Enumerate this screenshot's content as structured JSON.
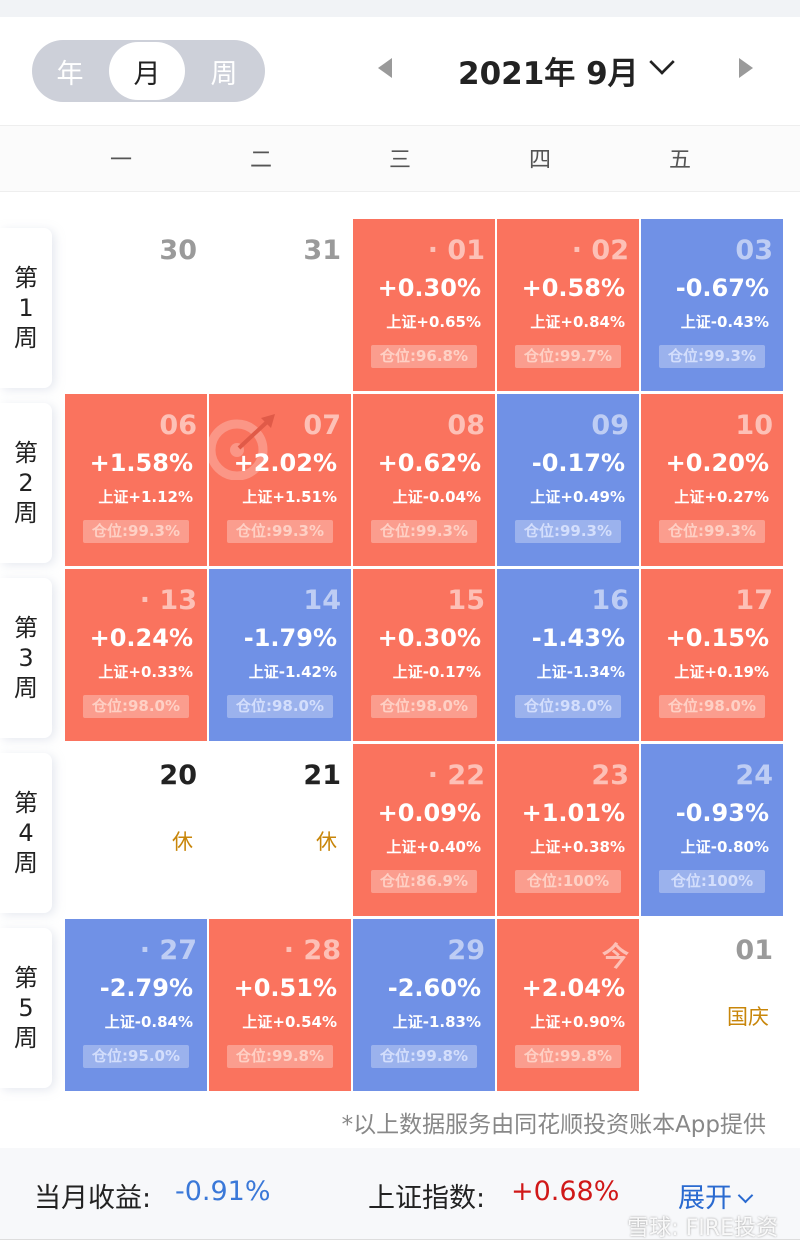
{
  "header": {
    "tabs": [
      "年",
      "月",
      "周"
    ],
    "active_tab": "月",
    "title": "2021年 9月"
  },
  "weekdays": [
    "一",
    "二",
    "三",
    "四",
    "五"
  ],
  "weeks": [
    "第1周",
    "第2周",
    "第3周",
    "第4周",
    "第5周"
  ],
  "colors": {
    "up": "#fa735e",
    "down": "#7091e6",
    "holiday": "#c8860a",
    "month_return": "#3a78d8",
    "index_return": "#d01818",
    "expand": "#2a6ad0"
  },
  "cells": [
    [
      {
        "day": "30",
        "type": "empty"
      },
      {
        "day": "31",
        "type": "empty"
      },
      {
        "day": "· 01",
        "type": "up",
        "pct": "+0.30%",
        "idx": "上证+0.65%",
        "pos": "仓位:96.8%"
      },
      {
        "day": "· 02",
        "type": "up",
        "pct": "+0.58%",
        "idx": "上证+0.84%",
        "pos": "仓位:99.7%"
      },
      {
        "day": "03",
        "type": "down",
        "pct": "-0.67%",
        "idx": "上证-0.43%",
        "pos": "仓位:99.3%"
      }
    ],
    [
      {
        "day": "06",
        "type": "up",
        "pct": "+1.58%",
        "idx": "上证+1.12%",
        "pos": "仓位:99.3%"
      },
      {
        "day": "07",
        "type": "up",
        "pct": "+2.02%",
        "idx": "上证+1.51%",
        "pos": "仓位:99.3%",
        "icon": "target-icon"
      },
      {
        "day": "08",
        "type": "up",
        "pct": "+0.62%",
        "idx": "上证-0.04%",
        "pos": "仓位:99.3%"
      },
      {
        "day": "09",
        "type": "down",
        "pct": "-0.17%",
        "idx": "上证+0.49%",
        "pos": "仓位:99.3%"
      },
      {
        "day": "10",
        "type": "up",
        "pct": "+0.20%",
        "idx": "上证+0.27%",
        "pos": "仓位:99.3%"
      }
    ],
    [
      {
        "day": "· 13",
        "type": "up",
        "pct": "+0.24%",
        "idx": "上证+0.33%",
        "pos": "仓位:98.0%"
      },
      {
        "day": "14",
        "type": "down",
        "pct": "-1.79%",
        "idx": "上证-1.42%",
        "pos": "仓位:98.0%"
      },
      {
        "day": "15",
        "type": "up",
        "pct": "+0.30%",
        "idx": "上证-0.17%",
        "pos": "仓位:98.0%"
      },
      {
        "day": "16",
        "type": "down",
        "pct": "-1.43%",
        "idx": "上证-1.34%",
        "pos": "仓位:98.0%"
      },
      {
        "day": "17",
        "type": "up",
        "pct": "+0.15%",
        "idx": "上证+0.19%",
        "pos": "仓位:98.0%"
      }
    ],
    [
      {
        "day": "20",
        "type": "holiday",
        "note": "休"
      },
      {
        "day": "21",
        "type": "holiday",
        "note": "休"
      },
      {
        "day": "· 22",
        "type": "up",
        "pct": "+0.09%",
        "idx": "上证+0.40%",
        "pos": "仓位:86.9%"
      },
      {
        "day": "23",
        "type": "up",
        "pct": "+1.01%",
        "idx": "上证+0.38%",
        "pos": "仓位:100%"
      },
      {
        "day": "24",
        "type": "down",
        "pct": "-0.93%",
        "idx": "上证-0.80%",
        "pos": "仓位:100%"
      }
    ],
    [
      {
        "day": "· 27",
        "type": "down",
        "pct": "-2.79%",
        "idx": "上证-0.84%",
        "pos": "仓位:95.0%"
      },
      {
        "day": "· 28",
        "type": "up",
        "pct": "+0.51%",
        "idx": "上证+0.54%",
        "pos": "仓位:99.8%"
      },
      {
        "day": "29",
        "type": "down",
        "pct": "-2.60%",
        "idx": "上证-1.83%",
        "pos": "仓位:99.8%"
      },
      {
        "day": "今",
        "type": "up",
        "pct": "+2.04%",
        "idx": "上证+0.90%",
        "pos": "仓位:99.8%"
      },
      {
        "day": "01",
        "type": "empty",
        "note": "国庆"
      }
    ]
  ],
  "footnote": "*以上数据服务由同花顺投资账本App提供",
  "summary": {
    "month_label": "当月收益:",
    "month_value": "-0.91%",
    "index_label": "上证指数:",
    "index_value": "+0.68%",
    "expand": "展开"
  },
  "watermark": "雪球: FIRE投资"
}
